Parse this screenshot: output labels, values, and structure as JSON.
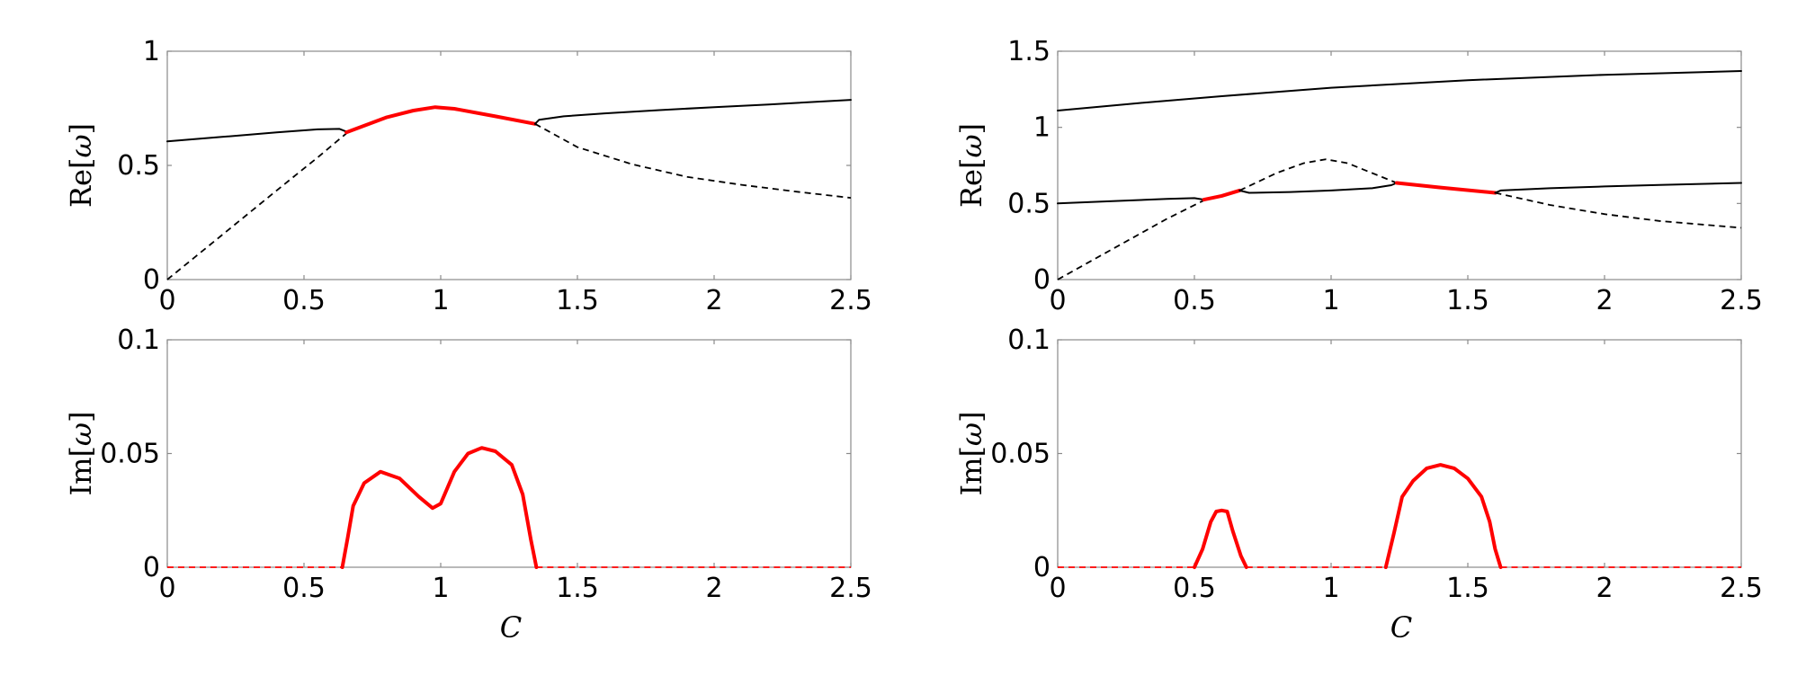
{
  "chart_data": [
    {
      "id": "top-left",
      "type": "line",
      "ylabel": "Re[ω]",
      "xlabel": "",
      "xlim": [
        0,
        2.5
      ],
      "ylim": [
        0,
        1
      ],
      "xticks": [
        "0",
        "0.5",
        "1",
        "1.5",
        "2",
        "2.5"
      ],
      "yticks": [
        "0",
        "0.5",
        "1"
      ],
      "grid": false,
      "series": [
        {
          "style": "solid",
          "color": "#000000",
          "points": [
            [
              0,
              0.605
            ],
            [
              0.2,
              0.625
            ],
            [
              0.4,
              0.645
            ],
            [
              0.55,
              0.658
            ],
            [
              0.63,
              0.66
            ],
            [
              0.655,
              0.648
            ]
          ]
        },
        {
          "style": "dashed",
          "color": "#000000",
          "points": [
            [
              0,
              0.0
            ],
            [
              0.2,
              0.195
            ],
            [
              0.4,
              0.39
            ],
            [
              0.55,
              0.535
            ],
            [
              0.655,
              0.64
            ]
          ]
        },
        {
          "style": "thick",
          "color": "#ff0000",
          "points": [
            [
              0.655,
              0.645
            ],
            [
              0.8,
              0.71
            ],
            [
              0.9,
              0.74
            ],
            [
              0.98,
              0.755
            ],
            [
              1.05,
              0.748
            ],
            [
              1.2,
              0.715
            ],
            [
              1.345,
              0.682
            ]
          ]
        },
        {
          "style": "solid",
          "color": "#000000",
          "points": [
            [
              1.345,
              0.682
            ],
            [
              1.36,
              0.7
            ],
            [
              1.45,
              0.715
            ],
            [
              1.6,
              0.728
            ],
            [
              1.8,
              0.742
            ],
            [
              2.0,
              0.755
            ],
            [
              2.2,
              0.767
            ],
            [
              2.5,
              0.787
            ]
          ]
        },
        {
          "style": "dashed",
          "color": "#000000",
          "points": [
            [
              1.345,
              0.682
            ],
            [
              1.5,
              0.58
            ],
            [
              1.7,
              0.505
            ],
            [
              1.9,
              0.45
            ],
            [
              2.1,
              0.415
            ],
            [
              2.3,
              0.385
            ],
            [
              2.5,
              0.358
            ]
          ]
        }
      ]
    },
    {
      "id": "top-right",
      "type": "line",
      "ylabel": "Re[ω]",
      "xlabel": "",
      "xlim": [
        0,
        2.5
      ],
      "ylim": [
        0,
        1.5
      ],
      "xticks": [
        "0",
        "0.5",
        "1",
        "1.5",
        "2",
        "2.5"
      ],
      "yticks": [
        "0",
        "0.5",
        "1",
        "1.5"
      ],
      "grid": false,
      "series": [
        {
          "style": "solid",
          "color": "#000000",
          "points": [
            [
              0,
              1.11
            ],
            [
              0.3,
              1.16
            ],
            [
              0.6,
              1.205
            ],
            [
              1.0,
              1.26
            ],
            [
              1.5,
              1.31
            ],
            [
              2.0,
              1.345
            ],
            [
              2.5,
              1.37
            ]
          ]
        },
        {
          "style": "solid",
          "color": "#000000",
          "points": [
            [
              0,
              0.5
            ],
            [
              0.2,
              0.515
            ],
            [
              0.4,
              0.53
            ],
            [
              0.5,
              0.535
            ],
            [
              0.535,
              0.525
            ]
          ]
        },
        {
          "style": "dashed",
          "color": "#000000",
          "points": [
            [
              0,
              0.0
            ],
            [
              0.2,
              0.2
            ],
            [
              0.4,
              0.4
            ],
            [
              0.535,
              0.52
            ]
          ]
        },
        {
          "style": "thick",
          "color": "#ff0000",
          "points": [
            [
              0.535,
              0.525
            ],
            [
              0.6,
              0.55
            ],
            [
              0.665,
              0.585
            ]
          ]
        },
        {
          "style": "solid",
          "color": "#000000",
          "points": [
            [
              0.665,
              0.585
            ],
            [
              0.7,
              0.57
            ],
            [
              0.85,
              0.575
            ],
            [
              1.0,
              0.585
            ],
            [
              1.15,
              0.6
            ],
            [
              1.22,
              0.62
            ],
            [
              1.24,
              0.635
            ]
          ]
        },
        {
          "style": "dashed",
          "color": "#000000",
          "points": [
            [
              0.665,
              0.585
            ],
            [
              0.8,
              0.7
            ],
            [
              0.9,
              0.765
            ],
            [
              0.98,
              0.79
            ],
            [
              1.06,
              0.765
            ],
            [
              1.15,
              0.7
            ],
            [
              1.24,
              0.635
            ]
          ]
        },
        {
          "style": "thick",
          "color": "#ff0000",
          "points": [
            [
              1.24,
              0.635
            ],
            [
              1.4,
              0.605
            ],
            [
              1.6,
              0.57
            ]
          ]
        },
        {
          "style": "solid",
          "color": "#000000",
          "points": [
            [
              1.6,
              0.57
            ],
            [
              1.62,
              0.585
            ],
            [
              1.8,
              0.6
            ],
            [
              2.0,
              0.612
            ],
            [
              2.2,
              0.622
            ],
            [
              2.5,
              0.635
            ]
          ]
        },
        {
          "style": "dashed",
          "color": "#000000",
          "points": [
            [
              1.6,
              0.57
            ],
            [
              1.8,
              0.49
            ],
            [
              2.0,
              0.43
            ],
            [
              2.2,
              0.385
            ],
            [
              2.5,
              0.34
            ]
          ]
        }
      ]
    },
    {
      "id": "bottom-left",
      "type": "line",
      "ylabel": "Im[ω]",
      "xlabel": "C",
      "xlim": [
        0,
        2.5
      ],
      "ylim": [
        0,
        0.1
      ],
      "xticks": [
        "0",
        "0.5",
        "1",
        "1.5",
        "2",
        "2.5"
      ],
      "yticks": [
        "0",
        "0.05",
        "0.1"
      ],
      "grid": false,
      "series": [
        {
          "style": "dashed-red",
          "color": "#ff0000",
          "points": [
            [
              0,
              0
            ],
            [
              0.64,
              0
            ]
          ]
        },
        {
          "style": "thick",
          "color": "#ff0000",
          "points": [
            [
              0.64,
              0
            ],
            [
              0.66,
              0.013
            ],
            [
              0.68,
              0.027
            ],
            [
              0.72,
              0.037
            ],
            [
              0.78,
              0.042
            ],
            [
              0.85,
              0.039
            ],
            [
              0.92,
              0.031
            ],
            [
              0.97,
              0.026
            ],
            [
              1.0,
              0.028
            ],
            [
              1.05,
              0.042
            ],
            [
              1.1,
              0.05
            ],
            [
              1.15,
              0.0525
            ],
            [
              1.2,
              0.051
            ],
            [
              1.26,
              0.045
            ],
            [
              1.3,
              0.032
            ],
            [
              1.33,
              0.012
            ],
            [
              1.35,
              0
            ]
          ]
        },
        {
          "style": "dashed-red",
          "color": "#ff0000",
          "points": [
            [
              1.35,
              0
            ],
            [
              2.5,
              0
            ]
          ]
        }
      ]
    },
    {
      "id": "bottom-right",
      "type": "line",
      "ylabel": "Im[ω]",
      "xlabel": "C",
      "xlim": [
        0,
        2.5
      ],
      "ylim": [
        0,
        0.1
      ],
      "xticks": [
        "0",
        "0.5",
        "1",
        "1.5",
        "2",
        "2.5"
      ],
      "yticks": [
        "0",
        "0.05",
        "0.1"
      ],
      "grid": false,
      "series": [
        {
          "style": "dashed-red",
          "color": "#ff0000",
          "points": [
            [
              0,
              0
            ],
            [
              0.5,
              0
            ]
          ]
        },
        {
          "style": "thick",
          "color": "#ff0000",
          "points": [
            [
              0.5,
              0
            ],
            [
              0.53,
              0.008
            ],
            [
              0.56,
              0.02
            ],
            [
              0.58,
              0.0245
            ],
            [
              0.6,
              0.025
            ],
            [
              0.62,
              0.0245
            ],
            [
              0.64,
              0.016
            ],
            [
              0.67,
              0.005
            ],
            [
              0.69,
              0
            ]
          ]
        },
        {
          "style": "dashed-red",
          "color": "#ff0000",
          "points": [
            [
              0.69,
              0
            ],
            [
              1.2,
              0
            ]
          ]
        },
        {
          "style": "thick",
          "color": "#ff0000",
          "points": [
            [
              1.2,
              0
            ],
            [
              1.23,
              0.015
            ],
            [
              1.26,
              0.031
            ],
            [
              1.3,
              0.038
            ],
            [
              1.35,
              0.0435
            ],
            [
              1.4,
              0.045
            ],
            [
              1.45,
              0.0435
            ],
            [
              1.5,
              0.039
            ],
            [
              1.55,
              0.031
            ],
            [
              1.58,
              0.02
            ],
            [
              1.6,
              0.008
            ],
            [
              1.62,
              0
            ]
          ]
        },
        {
          "style": "dashed-red",
          "color": "#ff0000",
          "points": [
            [
              1.62,
              0
            ],
            [
              2.5,
              0
            ]
          ]
        }
      ]
    }
  ]
}
